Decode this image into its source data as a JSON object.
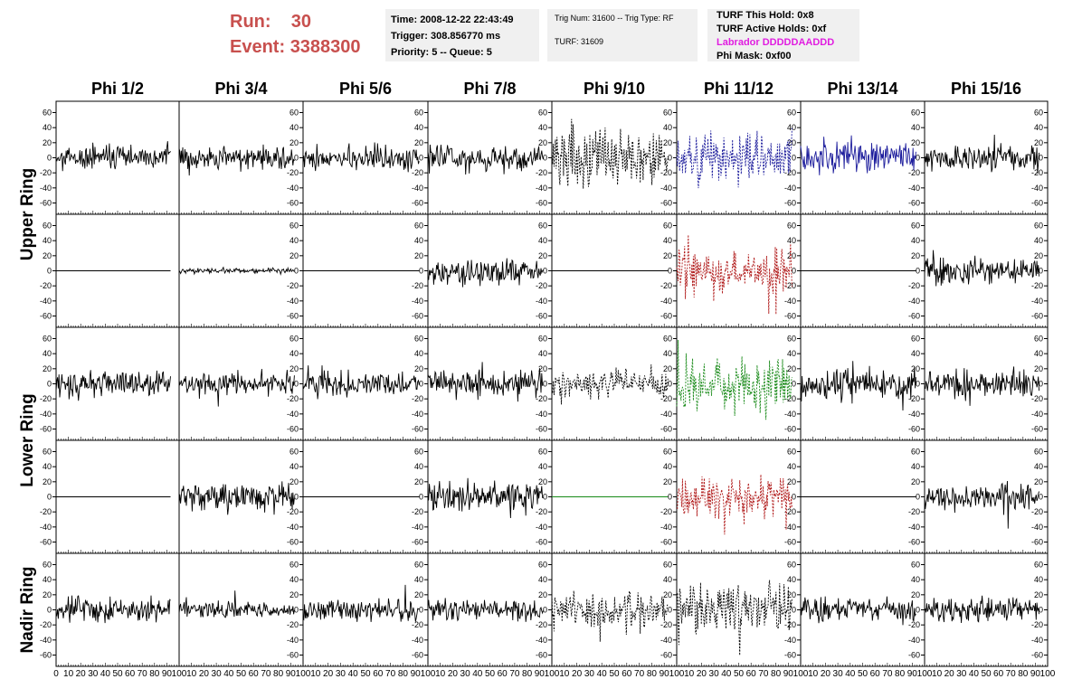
{
  "header": {
    "run_label": "Run:",
    "run_value": "30",
    "event_label": "Event:",
    "event_value": "3388300",
    "time": "Time: 2008-12-22 22:43:49",
    "trigger": "Trigger: 308.856770 ms",
    "priority": "Priority: 5 -- Queue: 5",
    "trig_num": "Trig Num: 31600 -- Trig Type: RF",
    "turf": "TURF: 31609",
    "turf_this_hold": "TURF This Hold: 0x8",
    "turf_active_holds": "TURF Active Holds: 0xf",
    "labrador": "Labrador DDDDDAADDD",
    "phi_mask": "Phi Mask: 0xf00"
  },
  "colors": {
    "run_text": "#c8504e",
    "labrador_text": "#e01de0",
    "trace_black": "#000000",
    "trace_blue": "#1c1c9c",
    "trace_red": "#b01818",
    "trace_green": "#188a18"
  },
  "chart_data": {
    "type": "line",
    "columns": [
      "Phi 1/2",
      "Phi 3/4",
      "Phi 5/6",
      "Phi 7/8",
      "Phi 9/10",
      "Phi 11/12",
      "Phi 13/14",
      "Phi 15/16"
    ],
    "row_groups": [
      {
        "label": "Upper Ring",
        "rows": [
          0,
          1
        ]
      },
      {
        "label": "Lower Ring",
        "rows": [
          2,
          3
        ]
      },
      {
        "label": "Nadir Ring",
        "rows": [
          4
        ]
      }
    ],
    "ylim": [
      -75,
      75
    ],
    "yticks": [
      "60",
      "40",
      "20",
      "0",
      "-20",
      "-40",
      "-60"
    ],
    "xlim": [
      0,
      100
    ],
    "xticks": [
      "0",
      "10",
      "20",
      "30",
      "40",
      "50",
      "60",
      "70",
      "80",
      "90",
      "100"
    ],
    "cells": [
      [
        {
          "amp": 14,
          "color": "black",
          "style": "solid",
          "seed": 1
        },
        {
          "amp": 12,
          "color": "black",
          "style": "solid",
          "seed": 2
        },
        {
          "amp": 14,
          "color": "black",
          "style": "solid",
          "seed": 3
        },
        {
          "amp": 15,
          "color": "black",
          "style": "solid",
          "seed": 4
        },
        {
          "amp": 32,
          "color": "black",
          "style": "dashed",
          "seed": 5
        },
        {
          "amp": 28,
          "color": "blue",
          "style": "dashed",
          "seed": 6
        },
        {
          "amp": 18,
          "color": "blue",
          "style": "solid",
          "seed": 7
        },
        {
          "amp": 15,
          "color": "black",
          "style": "solid",
          "seed": 8
        }
      ],
      [
        {
          "amp": 0,
          "color": "black",
          "style": "solid",
          "seed": 9
        },
        {
          "amp": 3,
          "color": "black",
          "style": "solid",
          "seed": 10
        },
        {
          "amp": 0,
          "color": "black",
          "style": "solid",
          "seed": 11
        },
        {
          "amp": 15,
          "color": "black",
          "style": "solid",
          "seed": 12
        },
        {
          "amp": 0,
          "color": "black",
          "style": "solid",
          "seed": 13
        },
        {
          "amp": 24,
          "color": "red",
          "style": "dashed",
          "seed": 14
        },
        {
          "amp": 0,
          "color": "black",
          "style": "solid",
          "seed": 15
        },
        {
          "amp": 15,
          "color": "black",
          "style": "solid",
          "seed": 16
        }
      ],
      [
        {
          "amp": 15,
          "color": "black",
          "style": "solid",
          "seed": 17
        },
        {
          "amp": 13,
          "color": "black",
          "style": "solid",
          "seed": 18
        },
        {
          "amp": 14,
          "color": "black",
          "style": "solid",
          "seed": 19
        },
        {
          "amp": 15,
          "color": "black",
          "style": "solid",
          "seed": 20
        },
        {
          "amp": 15,
          "color": "black",
          "style": "dashed",
          "seed": 21
        },
        {
          "amp": 30,
          "color": "green",
          "style": "dashed",
          "seed": 22
        },
        {
          "amp": 18,
          "color": "black",
          "style": "solid",
          "seed": 23
        },
        {
          "amp": 14,
          "color": "black",
          "style": "solid",
          "seed": 24
        }
      ],
      [
        {
          "amp": 0,
          "color": "black",
          "style": "solid",
          "seed": 25
        },
        {
          "amp": 15,
          "color": "black",
          "style": "solid",
          "seed": 26
        },
        {
          "amp": 0,
          "color": "black",
          "style": "solid",
          "seed": 27
        },
        {
          "amp": 16,
          "color": "black",
          "style": "solid",
          "seed": 28
        },
        {
          "amp": 0,
          "color": "green",
          "style": "solid",
          "seed": 29
        },
        {
          "amp": 22,
          "color": "red",
          "style": "dashed",
          "seed": 30
        },
        {
          "amp": 0,
          "color": "black",
          "style": "solid",
          "seed": 31
        },
        {
          "amp": 14,
          "color": "black",
          "style": "solid",
          "seed": 32
        }
      ],
      [
        {
          "amp": 14,
          "color": "black",
          "style": "solid",
          "seed": 33
        },
        {
          "amp": 9,
          "color": "black",
          "style": "solid",
          "seed": 34
        },
        {
          "amp": 13,
          "color": "black",
          "style": "solid",
          "seed": 35
        },
        {
          "amp": 11,
          "color": "black",
          "style": "solid",
          "seed": 36
        },
        {
          "amp": 20,
          "color": "black",
          "style": "dashed",
          "seed": 37
        },
        {
          "amp": 30,
          "color": "black",
          "style": "dashed",
          "seed": 38
        },
        {
          "amp": 13,
          "color": "black",
          "style": "solid",
          "seed": 39
        },
        {
          "amp": 13,
          "color": "black",
          "style": "solid",
          "seed": 40
        }
      ]
    ]
  }
}
